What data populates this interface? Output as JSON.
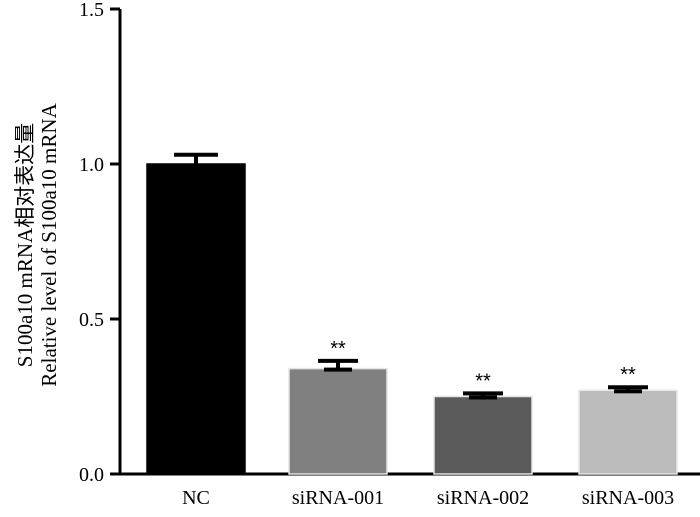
{
  "chart_data": {
    "type": "bar",
    "categories": [
      "NC",
      "siRNA-001",
      "siRNA-002",
      "siRNA-003"
    ],
    "values": [
      1.0,
      0.34,
      0.25,
      0.27
    ],
    "errors": [
      0.03,
      0.025,
      0.01,
      0.01
    ],
    "significance": [
      "",
      "**",
      "**",
      "**"
    ],
    "colors": [
      "#000000",
      "#808080",
      "#5a5a5a",
      "#bcbcbc"
    ],
    "ylabel_line1": "S100a10 mRNA相对表达量",
    "ylabel_line2": "Relative level of S100a10 mRNA",
    "ylim": [
      0,
      1.5
    ],
    "yticks": [
      "0.0",
      "0.5",
      "1.0",
      "1.5"
    ],
    "grid": false,
    "legend": "none"
  }
}
